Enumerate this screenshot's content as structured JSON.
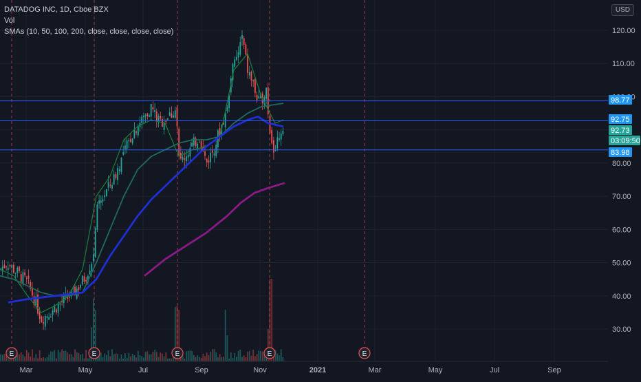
{
  "header": {
    "symbol_line": "DATADOG INC, 1D, Cboe BZX",
    "volume_label": "Vol",
    "sma_label": "SMAs (10, 50, 100, 200, close, close, close, close)",
    "currency": "USD"
  },
  "price_axis": {
    "ticks": [
      "120.00",
      "110.00",
      "100.00",
      "90.00",
      "80.00",
      "70.00",
      "60.00",
      "50.00",
      "40.00",
      "30.00"
    ],
    "tick_values": [
      120,
      110,
      100,
      90,
      80,
      70,
      60,
      50,
      40,
      30
    ]
  },
  "time_axis": {
    "labels": [
      "Mar",
      "May",
      "Jul",
      "Sep",
      "Nov",
      "2021",
      "Mar",
      "May",
      "Jul",
      "Sep"
    ]
  },
  "price_tags": [
    {
      "value": "98.77",
      "color": "#2196f3"
    },
    {
      "value": "92.75",
      "color": "#2196f3"
    },
    {
      "value": "92.73",
      "color": "#26a69a"
    },
    {
      "value": "03:09:50",
      "color": "#26a69a"
    },
    {
      "value": "83.98",
      "color": "#2196f3"
    }
  ],
  "horizontal_lines": [
    98.77,
    92.75,
    83.98
  ],
  "earnings_markers": [
    "E",
    "E",
    "E",
    "E",
    "E"
  ],
  "colors": {
    "background": "#131722",
    "up": "#26a69a",
    "down": "#ef5350",
    "sma10": "#1b7a3a",
    "sma50": "#1f6b5e",
    "sma100": "#1f2fd6",
    "sma200": "#8b1a86",
    "hline": "#2962ff",
    "earnings": "#ef5350"
  },
  "chart_data": {
    "type": "candlestick",
    "ylim": [
      22,
      127
    ],
    "ticker": "DATADOG INC",
    "interval": "1D",
    "exchange": "Cboe BZX",
    "series": [
      {
        "name": "SMA 10",
        "color": "#1b7a3a",
        "values": [
          [
            0,
            48
          ],
          [
            20,
            46
          ],
          [
            40,
            40
          ],
          [
            60,
            35
          ],
          [
            80,
            37
          ],
          [
            100,
            40
          ],
          [
            120,
            48
          ],
          [
            140,
            70
          ],
          [
            160,
            76
          ],
          [
            180,
            87
          ],
          [
            200,
            91
          ],
          [
            220,
            93
          ],
          [
            240,
            92
          ],
          [
            260,
            82
          ],
          [
            280,
            84
          ],
          [
            300,
            85
          ],
          [
            320,
            88
          ],
          [
            340,
            108
          ],
          [
            360,
            113
          ],
          [
            380,
            100
          ],
          [
            400,
            92
          ],
          [
            412,
            93
          ]
        ]
      },
      {
        "name": "SMA 50",
        "color": "#1f6b5e",
        "values": [
          [
            0,
            46
          ],
          [
            20,
            45
          ],
          [
            40,
            43
          ],
          [
            60,
            41
          ],
          [
            80,
            40
          ],
          [
            100,
            40
          ],
          [
            120,
            41
          ],
          [
            140,
            50
          ],
          [
            160,
            60
          ],
          [
            180,
            70
          ],
          [
            200,
            78
          ],
          [
            220,
            82
          ],
          [
            240,
            84
          ],
          [
            260,
            86
          ],
          [
            280,
            87
          ],
          [
            300,
            87
          ],
          [
            320,
            88
          ],
          [
            340,
            92
          ],
          [
            360,
            95
          ],
          [
            380,
            97
          ],
          [
            412,
            98
          ]
        ]
      },
      {
        "name": "SMA 100",
        "color": "#1f2fd6",
        "values": [
          [
            12,
            38
          ],
          [
            40,
            39
          ],
          [
            80,
            40
          ],
          [
            120,
            41
          ],
          [
            140,
            45
          ],
          [
            160,
            52
          ],
          [
            180,
            58
          ],
          [
            200,
            64
          ],
          [
            220,
            69
          ],
          [
            240,
            73
          ],
          [
            260,
            77
          ],
          [
            280,
            81
          ],
          [
            300,
            85
          ],
          [
            320,
            88
          ],
          [
            340,
            91
          ],
          [
            360,
            93
          ],
          [
            375,
            94
          ],
          [
            390,
            92
          ],
          [
            412,
            91
          ]
        ]
      },
      {
        "name": "SMA 200",
        "color": "#8b1a86",
        "values": [
          [
            210,
            46
          ],
          [
            240,
            51
          ],
          [
            270,
            55
          ],
          [
            300,
            59
          ],
          [
            330,
            64
          ],
          [
            350,
            68
          ],
          [
            370,
            71
          ],
          [
            390,
            72.5
          ],
          [
            414,
            74
          ]
        ]
      }
    ],
    "annotations": [
      "98.77",
      "92.75",
      "83.98"
    ]
  }
}
